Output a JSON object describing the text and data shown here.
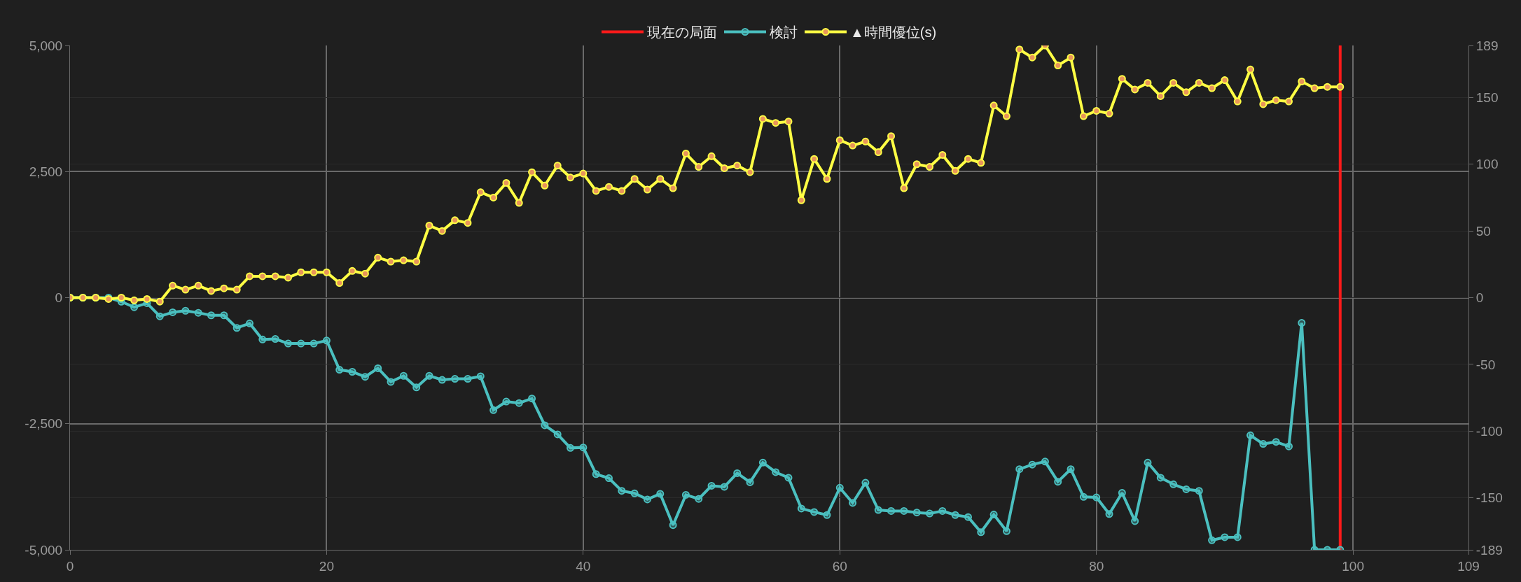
{
  "chart_data": {
    "type": "line",
    "x": [
      0,
      1,
      2,
      3,
      4,
      5,
      6,
      7,
      8,
      9,
      10,
      11,
      12,
      13,
      14,
      15,
      16,
      17,
      18,
      19,
      20,
      21,
      22,
      23,
      24,
      25,
      26,
      27,
      28,
      29,
      30,
      31,
      32,
      33,
      34,
      35,
      36,
      37,
      38,
      39,
      40,
      41,
      42,
      43,
      44,
      45,
      46,
      47,
      48,
      49,
      50,
      51,
      52,
      53,
      54,
      55,
      56,
      57,
      58,
      59,
      60,
      61,
      62,
      63,
      64,
      65,
      66,
      67,
      68,
      69,
      70,
      71,
      72,
      73,
      74,
      75,
      76,
      77,
      78,
      79,
      80,
      81,
      82,
      83,
      84,
      85,
      86,
      87,
      88,
      89,
      90,
      91,
      92,
      93,
      94,
      95,
      96,
      97,
      98,
      99
    ],
    "series": [
      {
        "name": "現在の局面",
        "type": "line",
        "color": "#ff1a1a",
        "marker": "none",
        "x": [
          99,
          99
        ],
        "values": [
          -5000,
          5000
        ]
      },
      {
        "name": "検討",
        "color": "#4bc0c0",
        "marker": "circle",
        "values": [
          0,
          0,
          0,
          0,
          -80,
          -190,
          -110,
          -370,
          -290,
          -260,
          -300,
          -350,
          -350,
          -600,
          -510,
          -830,
          -820,
          -910,
          -910,
          -910,
          -850,
          -1430,
          -1470,
          -1570,
          -1400,
          -1670,
          -1550,
          -1780,
          -1550,
          -1630,
          -1610,
          -1610,
          -1560,
          -2230,
          -2060,
          -2090,
          -2000,
          -2530,
          -2710,
          -2980,
          -2970,
          -3500,
          -3580,
          -3830,
          -3880,
          -4000,
          -3890,
          -4510,
          -3910,
          -3990,
          -3730,
          -3750,
          -3480,
          -3660,
          -3270,
          -3460,
          -3570,
          -4180,
          -4250,
          -4310,
          -3770,
          -4070,
          -3670,
          -4210,
          -4230,
          -4230,
          -4260,
          -4280,
          -4230,
          -4310,
          -4350,
          -4650,
          -4300,
          -4630,
          -3400,
          -3310,
          -3250,
          -3650,
          -3400,
          -3950,
          -3960,
          -4290,
          -3870,
          -4430,
          -3270,
          -3570,
          -3700,
          -3800,
          -3830,
          -4810,
          -4750,
          -4750,
          -2730,
          -2900,
          -2860,
          -2950,
          -500,
          -5000,
          -5000,
          -5000
        ]
      },
      {
        "name": "▲時間優位(s)",
        "color": "#ffff44",
        "marker": "circle",
        "axis": "y2",
        "values": [
          0,
          0,
          0,
          -1,
          0,
          -2,
          -1,
          -3,
          9,
          6,
          9,
          5,
          7,
          6,
          16,
          16,
          16,
          15,
          19,
          19,
          19,
          11,
          20,
          18,
          30,
          27,
          28,
          27,
          54,
          50,
          58,
          56,
          79,
          75,
          86,
          71,
          94,
          84,
          99,
          90,
          93,
          80,
          83,
          80,
          89,
          81,
          89,
          82,
          108,
          98,
          106,
          97,
          99,
          94,
          134,
          131,
          132,
          73,
          104,
          89,
          118,
          114,
          117,
          109,
          121,
          82,
          100,
          98,
          107,
          95,
          104,
          101,
          144,
          136,
          186,
          180,
          189,
          174,
          180,
          136,
          140,
          138,
          164,
          156,
          161,
          151,
          161,
          154,
          161,
          157,
          163,
          147,
          171,
          145,
          148,
          147,
          162,
          157,
          158,
          158
        ]
      }
    ],
    "xlim": [
      0,
      109
    ],
    "xticks": [
      0,
      20,
      40,
      60,
      80,
      100,
      109
    ],
    "ylim": [
      -5000,
      5000
    ],
    "yticks": [
      {
        "value": -5000,
        "label": "-5,000"
      },
      {
        "value": -2500,
        "label": "-2,500"
      },
      0,
      {
        "value": 2500,
        "label": "2,500"
      },
      {
        "value": 5000,
        "label": "5,000"
      }
    ],
    "y2lim": [
      -189,
      189
    ],
    "y2ticks": [
      -189,
      -150,
      -100,
      -50,
      0,
      50,
      100,
      150,
      189
    ],
    "grid": true,
    "legend": "top",
    "line_style": "solid"
  }
}
